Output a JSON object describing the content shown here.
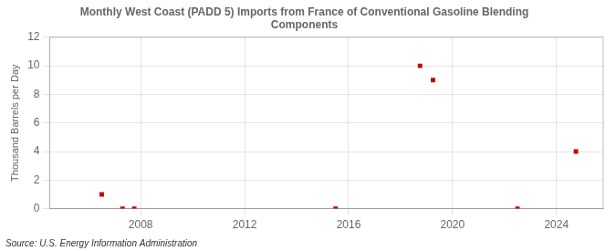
{
  "chart_data": {
    "type": "scatter",
    "title": "Monthly West Coast (PADD 5) Imports from France of Conventional Gasoline Blending\nComponents",
    "ylabel": "Thousand Barrels per Day",
    "annotations": [
      "Source: U.S. Energy Information Administration"
    ],
    "x": [
      2006.5,
      2007.3,
      2007.75,
      2015.5,
      2018.75,
      2019.25,
      2022.5,
      2024.75
    ],
    "values": [
      1.0,
      0.0,
      0.0,
      0.0,
      10.0,
      9.0,
      0.0,
      4.0
    ],
    "color": "#cc0000",
    "marker": "square",
    "xlim": [
      2004.5,
      2025.8
    ],
    "ylim": [
      0,
      12
    ],
    "xticks": [
      2008,
      2012,
      2016,
      2020,
      2024
    ],
    "yticks": [
      0,
      2,
      4,
      6,
      8,
      10,
      12
    ],
    "grid": true
  }
}
